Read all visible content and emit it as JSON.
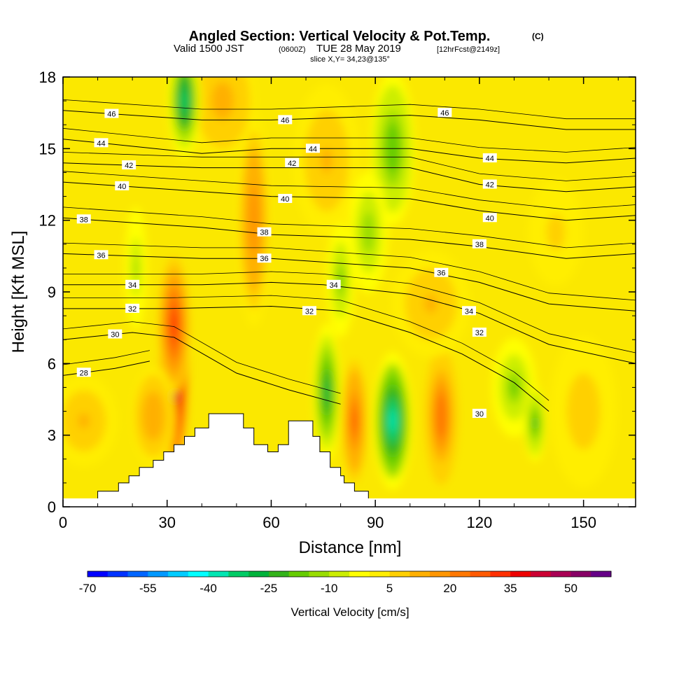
{
  "header": {
    "title": "Angled Section: Vertical Velocity & Pot.Temp.",
    "title_suffix": "(C)",
    "valid_prefix": "Valid 1500 JST",
    "valid_utc": "(0600Z)",
    "valid_date": "TUE 28 May 2019",
    "valid_fcst": "[12hrFcst@2149z]",
    "slice": "slice X,Y= 34,23@135°"
  },
  "chart_data": {
    "type": "heatmap",
    "xlabel": "Distance [nm]",
    "ylabel": "Height [Kft MSL]",
    "xlim": [
      0,
      165
    ],
    "ylim": [
      0,
      18
    ],
    "x_ticks": [
      "0",
      "30",
      "60",
      "90",
      "120",
      "150"
    ],
    "x_tick_values": [
      0,
      30,
      60,
      90,
      120,
      150
    ],
    "y_ticks": [
      "0",
      "3",
      "6",
      "9",
      "12",
      "15",
      "18"
    ],
    "y_tick_values": [
      0,
      3,
      6,
      9,
      12,
      15,
      18
    ],
    "terrain_profile": [
      [
        0,
        0.3
      ],
      [
        10,
        0.3
      ],
      [
        10,
        0.65
      ],
      [
        16,
        0.65
      ],
      [
        16,
        1.0
      ],
      [
        19,
        1.0
      ],
      [
        19,
        1.3
      ],
      [
        22,
        1.3
      ],
      [
        22,
        1.65
      ],
      [
        26,
        1.65
      ],
      [
        26,
        1.95
      ],
      [
        29,
        1.95
      ],
      [
        29,
        2.3
      ],
      [
        32,
        2.3
      ],
      [
        32,
        2.6
      ],
      [
        35,
        2.6
      ],
      [
        35,
        2.95
      ],
      [
        38,
        2.95
      ],
      [
        38,
        3.3
      ],
      [
        42,
        3.3
      ],
      [
        42,
        3.9
      ],
      [
        52,
        3.9
      ],
      [
        52,
        3.3
      ],
      [
        55,
        3.3
      ],
      [
        55,
        2.6
      ],
      [
        59,
        2.6
      ],
      [
        59,
        2.3
      ],
      [
        62,
        2.3
      ],
      [
        62,
        2.6
      ],
      [
        65,
        2.6
      ],
      [
        65,
        3.6
      ],
      [
        72,
        3.6
      ],
      [
        72,
        2.95
      ],
      [
        74,
        2.95
      ],
      [
        74,
        2.3
      ],
      [
        77,
        2.3
      ],
      [
        77,
        1.65
      ],
      [
        80,
        1.65
      ],
      [
        80,
        1.3
      ],
      [
        81,
        1.3
      ],
      [
        81,
        1.0
      ],
      [
        84,
        1.0
      ],
      [
        84,
        0.65
      ],
      [
        88,
        0.65
      ],
      [
        88,
        0.3
      ],
      [
        165,
        0.3
      ]
    ],
    "velocity_cells": [
      {
        "x": 32,
        "y": 5.8,
        "sx": 2.6,
        "sy": 2.6,
        "v": 58
      },
      {
        "x": 32,
        "y": 7.6,
        "sx": 2.8,
        "sy": 1.8,
        "v": 30
      },
      {
        "x": 26,
        "y": 3.8,
        "sx": 4,
        "sy": 1.3,
        "v": 14
      },
      {
        "x": 55,
        "y": 12,
        "sx": 3,
        "sy": 2.8,
        "v": 18
      },
      {
        "x": 46,
        "y": 17,
        "sx": 6,
        "sy": 1.5,
        "v": 12
      },
      {
        "x": 76,
        "y": 14.5,
        "sx": 6,
        "sy": 2,
        "v": 10
      },
      {
        "x": 84,
        "y": 3.6,
        "sx": 2.2,
        "sy": 1.6,
        "v": 26
      },
      {
        "x": 109,
        "y": 3.8,
        "sx": 3,
        "sy": 1.8,
        "v": 24
      },
      {
        "x": 106,
        "y": 8.5,
        "sx": 7,
        "sy": 1.4,
        "v": 10
      },
      {
        "x": 6,
        "y": 3.6,
        "sx": 6,
        "sy": 1.2,
        "v": 10
      },
      {
        "x": 95,
        "y": 3.6,
        "sx": 3.5,
        "sy": 1.8,
        "v": -38
      },
      {
        "x": 76,
        "y": 4.8,
        "sx": 2.5,
        "sy": 1.8,
        "v": -28
      },
      {
        "x": 35,
        "y": 17,
        "sx": 3,
        "sy": 1.5,
        "v": -32
      },
      {
        "x": 95,
        "y": 15,
        "sx": 4,
        "sy": 2,
        "v": -20
      },
      {
        "x": 88,
        "y": 11.5,
        "sx": 3.5,
        "sy": 1.6,
        "v": -14
      },
      {
        "x": 80,
        "y": 9.5,
        "sx": 2.5,
        "sy": 1.5,
        "v": -16
      },
      {
        "x": 130,
        "y": 5,
        "sx": 4,
        "sy": 1.3,
        "v": -16
      },
      {
        "x": 136,
        "y": 3.5,
        "sx": 2,
        "sy": 1,
        "v": -22
      },
      {
        "x": 21,
        "y": 10,
        "sx": 2,
        "sy": 1.6,
        "v": -12
      },
      {
        "x": 142,
        "y": 11.5,
        "sx": 5,
        "sy": 1.4,
        "v": 6
      },
      {
        "x": 150,
        "y": 4,
        "sx": 6,
        "sy": 2,
        "v": 8
      }
    ],
    "isentropes": [
      {
        "label": "28",
        "label_x": 6,
        "points": [
          [
            0,
            5.5
          ],
          [
            15,
            5.8
          ],
          [
            25,
            6.1
          ]
        ]
      },
      {
        "label": "30",
        "label_x": 15,
        "points": [
          [
            0,
            7.0
          ],
          [
            20,
            7.3
          ],
          [
            32,
            7.1
          ],
          [
            50,
            5.6
          ],
          [
            65,
            4.9
          ],
          [
            80,
            4.3
          ]
        ]
      },
      {
        "label": "32",
        "label_x": 20,
        "points": [
          [
            0,
            8.3
          ],
          [
            30,
            8.3
          ],
          [
            60,
            8.4
          ],
          [
            80,
            8.2
          ],
          [
            100,
            7.3
          ],
          [
            115,
            6.4
          ],
          [
            130,
            5.2
          ],
          [
            140,
            4.0
          ]
        ]
      },
      {
        "label": "34",
        "label_x": 20,
        "points": [
          [
            0,
            9.3
          ],
          [
            40,
            9.3
          ],
          [
            60,
            9.4
          ],
          [
            75,
            9.3
          ],
          [
            100,
            8.9
          ],
          [
            120,
            8.1
          ],
          [
            140,
            6.8
          ],
          [
            165,
            6.0
          ]
        ]
      },
      {
        "label": "36",
        "label_x": 11,
        "points": [
          [
            0,
            10.6
          ],
          [
            40,
            10.4
          ],
          [
            60,
            10.4
          ],
          [
            100,
            10.0
          ],
          [
            120,
            9.4
          ],
          [
            140,
            8.5
          ],
          [
            165,
            8.2
          ]
        ]
      },
      {
        "label": "38",
        "label_x": 6,
        "points": [
          [
            0,
            12.1
          ],
          [
            40,
            11.7
          ],
          [
            60,
            11.4
          ],
          [
            100,
            11.2
          ],
          [
            120,
            10.9
          ],
          [
            145,
            10.4
          ],
          [
            165,
            10.6
          ]
        ]
      },
      {
        "label": "40",
        "label_x": 17,
        "points": [
          [
            0,
            13.6
          ],
          [
            40,
            13.2
          ],
          [
            60,
            13.0
          ],
          [
            100,
            12.9
          ],
          [
            120,
            12.4
          ],
          [
            145,
            12.0
          ],
          [
            165,
            12.2
          ]
        ]
      },
      {
        "label": "42",
        "label_x": 19,
        "points": [
          [
            0,
            14.4
          ],
          [
            40,
            14.2
          ],
          [
            60,
            14.2
          ],
          [
            100,
            14.2
          ],
          [
            120,
            13.5
          ],
          [
            145,
            13.2
          ],
          [
            165,
            13.4
          ]
        ]
      },
      {
        "label": "44",
        "label_x": 11,
        "points": [
          [
            0,
            15.4
          ],
          [
            40,
            14.8
          ],
          [
            60,
            15.0
          ],
          [
            100,
            15.0
          ],
          [
            120,
            14.6
          ],
          [
            145,
            14.4
          ],
          [
            165,
            14.6
          ]
        ]
      },
      {
        "label": "46",
        "label_x": 14,
        "points": [
          [
            0,
            16.6
          ],
          [
            40,
            16.2
          ],
          [
            60,
            16.2
          ],
          [
            100,
            16.4
          ],
          [
            120,
            16.2
          ],
          [
            145,
            15.8
          ],
          [
            165,
            15.8
          ]
        ]
      }
    ],
    "extra_labels": [
      {
        "text": "46",
        "x": 64,
        "y": 16.2
      },
      {
        "text": "46",
        "x": 110,
        "y": 16.5
      },
      {
        "text": "44",
        "x": 72,
        "y": 15.0
      },
      {
        "text": "44",
        "x": 123,
        "y": 14.6
      },
      {
        "text": "42",
        "x": 66,
        "y": 14.4
      },
      {
        "text": "42",
        "x": 123,
        "y": 13.5
      },
      {
        "text": "40",
        "x": 64,
        "y": 12.9
      },
      {
        "text": "40",
        "x": 123,
        "y": 12.1
      },
      {
        "text": "38",
        "x": 58,
        "y": 11.5
      },
      {
        "text": "38",
        "x": 120,
        "y": 11.0
      },
      {
        "text": "36",
        "x": 58,
        "y": 10.4
      },
      {
        "text": "36",
        "x": 109,
        "y": 9.8
      },
      {
        "text": "34",
        "x": 78,
        "y": 9.3
      },
      {
        "text": "34",
        "x": 117,
        "y": 8.2
      },
      {
        "text": "32",
        "x": 71,
        "y": 8.2
      },
      {
        "text": "32",
        "x": 120,
        "y": 7.3
      },
      {
        "text": "30",
        "x": 120,
        "y": 3.9
      }
    ],
    "colorbar": {
      "label": "Vertical Velocity [cm/s]",
      "min": -70,
      "max": 60,
      "tick_labels": [
        "-70",
        "-55",
        "-40",
        "-25",
        "-10",
        "5",
        "20",
        "35",
        "50"
      ],
      "tick_values": [
        -70,
        -55,
        -40,
        -25,
        -10,
        5,
        20,
        35,
        50
      ],
      "colors": [
        "#0000ff",
        "#0033ff",
        "#0066ff",
        "#0099ff",
        "#00ccff",
        "#00ffff",
        "#00e6b3",
        "#00cc66",
        "#00b33c",
        "#33b31a",
        "#66cc00",
        "#99dd00",
        "#ccee00",
        "#ffff00",
        "#ffee00",
        "#ffd000",
        "#ffb000",
        "#ff9600",
        "#ff7800",
        "#ff5a00",
        "#ff3000",
        "#ee0000",
        "#cc0033",
        "#aa0055",
        "#880066",
        "#660088"
      ]
    }
  }
}
